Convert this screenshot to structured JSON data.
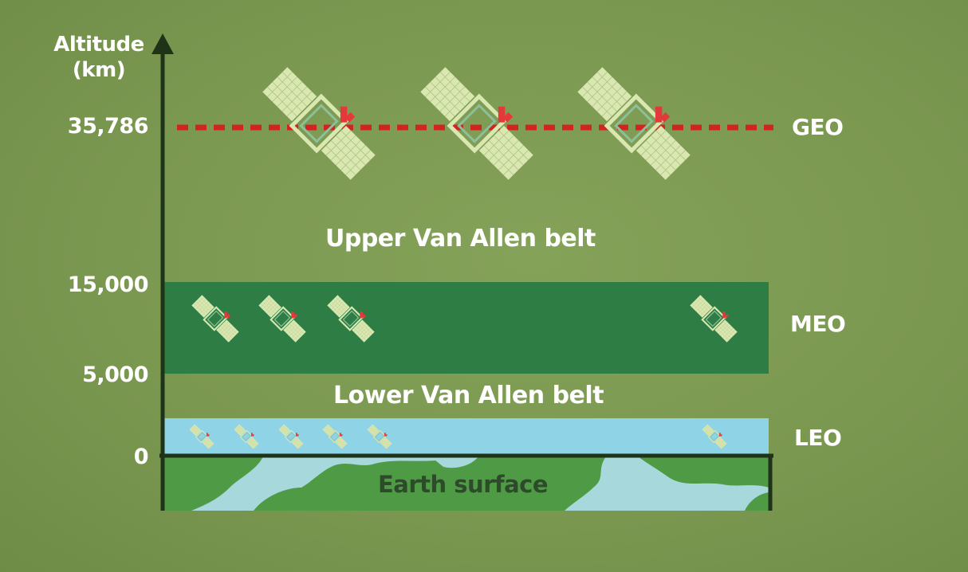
{
  "axis": {
    "title_line1": "Altitude",
    "title_line2": "(km)",
    "ticks": [
      "35,786",
      "15,000",
      "5,000",
      "0"
    ]
  },
  "orbits": {
    "geo": "GEO",
    "meo": "MEO",
    "leo": "LEO"
  },
  "regions": {
    "upper_belt": "Upper Van Allen belt",
    "lower_belt": "Lower Van Allen belt",
    "earth": "Earth surface"
  },
  "satellite_counts": {
    "geo": 3,
    "meo": 4,
    "leo": 6
  },
  "colors": {
    "background": "#7d9a52",
    "meo_band": "#2e7d45",
    "leo_band": "#8fd3e6",
    "earth_land": "#4f9a44",
    "earth_water": "#a7d8dc",
    "geo_line": "#d32222",
    "axis": "#1f3318",
    "satellite_panel": "#d9e7b0",
    "satellite_accent": "#e23a3a"
  }
}
